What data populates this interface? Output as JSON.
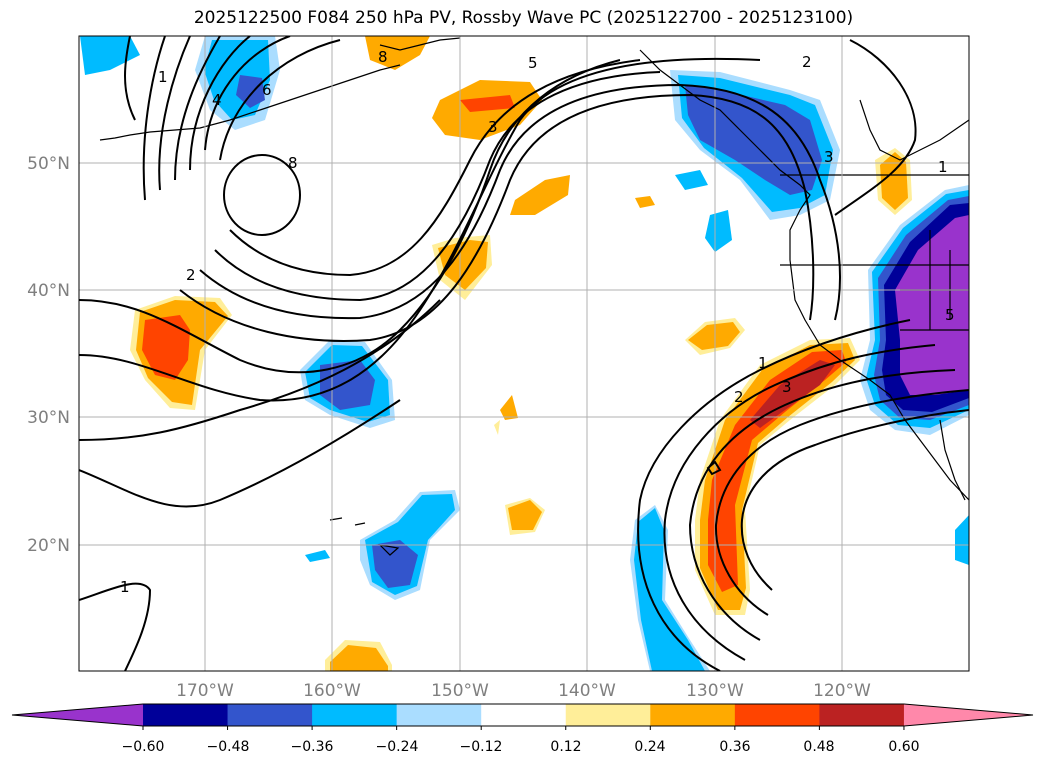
{
  "title": "2025122500 F084 250 hPa PV, Rossby Wave PC (2025122700 - 2025123100)",
  "lat_labels": [
    "50°N",
    "40°N",
    "30°N",
    "20°N"
  ],
  "lon_labels": [
    "170°W",
    "160°W",
    "150°W",
    "140°W",
    "130°W",
    "120°W"
  ],
  "colorbar": {
    "tick_labels": [
      "−0.60",
      "−0.48",
      "−0.36",
      "−0.24",
      "−0.12",
      "0.12",
      "0.24",
      "0.36",
      "0.48",
      "0.60"
    ],
    "levels": [
      -0.6,
      -0.48,
      -0.36,
      -0.24,
      -0.12,
      0.12,
      0.24,
      0.36,
      0.48,
      0.6
    ],
    "colors": [
      "#9933cc",
      "#000099",
      "#3355cc",
      "#00bbff",
      "#aaddff",
      "#ffffff",
      "#ffee99",
      "#ffaa00",
      "#ff4400",
      "#bb2222",
      "#ff88aa"
    ]
  },
  "contour_labels": [
    "1",
    "4",
    "6",
    "8",
    "8",
    "5",
    "3",
    "2",
    "3",
    "2",
    "1",
    "2",
    "3",
    "1",
    "1",
    "5"
  ],
  "colors": {
    "coast": "#000000",
    "grid": "#b0b0b0",
    "tick_text": "#7f7f7f"
  }
}
